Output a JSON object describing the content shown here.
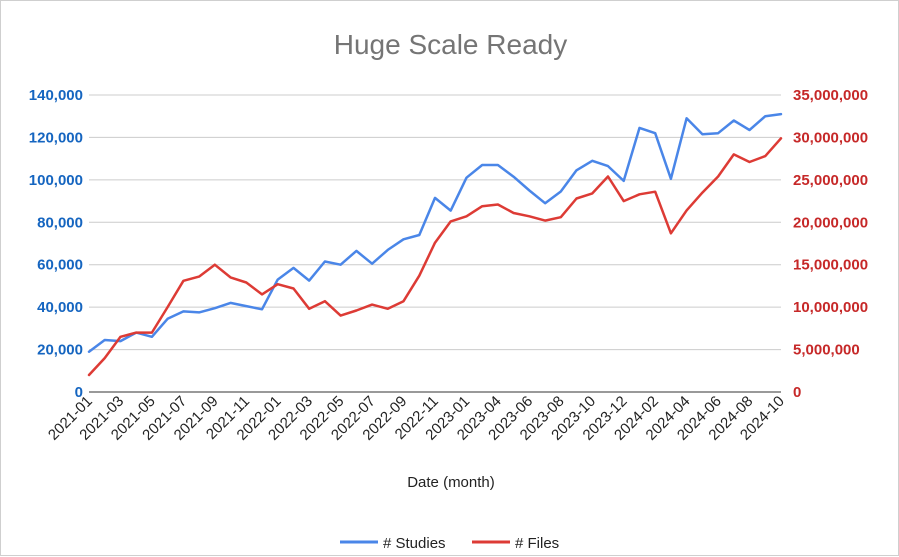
{
  "chart_data": {
    "type": "line",
    "title": "Huge Scale Ready",
    "xlabel": "Date (month)",
    "ylabel_left": "",
    "ylabel_right": "",
    "x": [
      "2021-01",
      "2021-02",
      "2021-03",
      "2021-04",
      "2021-05",
      "2021-06",
      "2021-07",
      "2021-08",
      "2021-09",
      "2021-10",
      "2021-11",
      "2021-12",
      "2022-01",
      "2022-02",
      "2022-03",
      "2022-04",
      "2022-05",
      "2022-06",
      "2022-07",
      "2022-08",
      "2022-09",
      "2022-10",
      "2022-11",
      "2022-12",
      "2023-01",
      "2023-03",
      "2023-04",
      "2023-05",
      "2023-06",
      "2023-07",
      "2023-08",
      "2023-09",
      "2023-10",
      "2023-11",
      "2023-12",
      "2024-01",
      "2024-02",
      "2024-03",
      "2024-04",
      "2024-05",
      "2024-06",
      "2024-07",
      "2024-08",
      "2024-09",
      "2024-10"
    ],
    "x_tick_labels": [
      "2021-01",
      "2021-03",
      "2021-05",
      "2021-07",
      "2021-09",
      "2021-11",
      "2022-01",
      "2022-03",
      "2022-05",
      "2022-07",
      "2022-09",
      "2022-11",
      "2023-01",
      "2023-04",
      "2023-06",
      "2023-08",
      "2023-10",
      "2023-12",
      "2024-02",
      "2024-04",
      "2024-06",
      "2024-08",
      "2024-10"
    ],
    "ylim_left": [
      0,
      140000
    ],
    "yticks_left": [
      "0",
      "20,000",
      "40,000",
      "60,000",
      "80,000",
      "100,000",
      "120,000",
      "140,000"
    ],
    "ylim_right": [
      0,
      35000000
    ],
    "yticks_right": [
      "0",
      "5,000,000",
      "10,000,000",
      "15,000,000",
      "20,000,000",
      "25,000,000",
      "30,000,000",
      "35,000,000"
    ],
    "grid": true,
    "legend_position": "bottom",
    "series": [
      {
        "name": "# Studies",
        "axis": "left",
        "color": "#4a86e8",
        "values": [
          19000,
          24500,
          24000,
          28000,
          26000,
          34500,
          38000,
          37500,
          39500,
          42000,
          40500,
          39000,
          53000,
          58500,
          52500,
          61500,
          60000,
          66500,
          60500,
          67000,
          72000,
          74000,
          91500,
          85500,
          101000,
          107000,
          107000,
          101500,
          95000,
          89000,
          94500,
          104500,
          109000,
          106500,
          99500,
          124500,
          122000,
          100500,
          129000,
          121500,
          122000,
          128000,
          123500,
          130000,
          131000
        ]
      },
      {
        "name": "# Files",
        "axis": "right",
        "color": "#dd3b35",
        "values": [
          2000000,
          4000000,
          6500000,
          7000000,
          7000000,
          10000000,
          13100000,
          13600000,
          15000000,
          13500000,
          12900000,
          11500000,
          12700000,
          12200000,
          9800000,
          10700000,
          9000000,
          9600000,
          10300000,
          9800000,
          10700000,
          13700000,
          17600000,
          20100000,
          20700000,
          21900000,
          22100000,
          21100000,
          20700000,
          20200000,
          20600000,
          22800000,
          23400000,
          25400000,
          22500000,
          23300000,
          23600000,
          18700000,
          21400000,
          23500000,
          25400000,
          28000000,
          27100000,
          27800000,
          29900000
        ]
      }
    ]
  }
}
